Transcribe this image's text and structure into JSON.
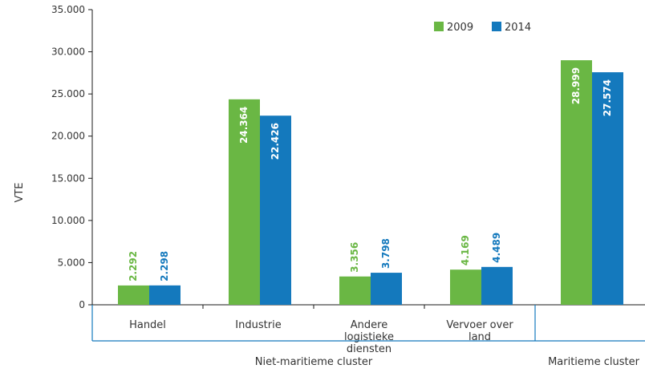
{
  "chart_data": {
    "type": "bar",
    "ylabel": "VTE",
    "ylim": [
      0,
      35000
    ],
    "yticks": [
      "0",
      "5.000",
      "10.000",
      "15.000",
      "20.000",
      "25.000",
      "30.000",
      "35.000"
    ],
    "yticks_values": [
      0,
      5000,
      10000,
      15000,
      20000,
      25000,
      30000,
      35000
    ],
    "categories": [
      "Handel",
      "Industrie",
      "Andere logistieke diensten",
      "Vervoer over land",
      ""
    ],
    "category_lines": [
      [
        "Handel"
      ],
      [
        "Industrie"
      ],
      [
        "Andere",
        "logistieke",
        "diensten"
      ],
      [
        "Vervoer over",
        "land"
      ],
      []
    ],
    "groups": [
      {
        "label": "Niet-maritieme cluster",
        "categories": 4
      },
      {
        "label": "Maritieme cluster",
        "categories": 1
      }
    ],
    "series": [
      {
        "name": "2009",
        "color": "#6ab744",
        "values": [
          2292,
          24364,
          3356,
          4169,
          28999
        ],
        "labels": [
          "2.292",
          "24.364",
          "3.356",
          "4.169",
          "28.999"
        ]
      },
      {
        "name": "2014",
        "color": "#1479bd",
        "values": [
          2298,
          22426,
          3798,
          4489,
          27574
        ],
        "labels": [
          "2.298",
          "22.426",
          "3.798",
          "4.489",
          "27.574"
        ]
      }
    ],
    "legend_position": "top-right",
    "grid": false
  }
}
